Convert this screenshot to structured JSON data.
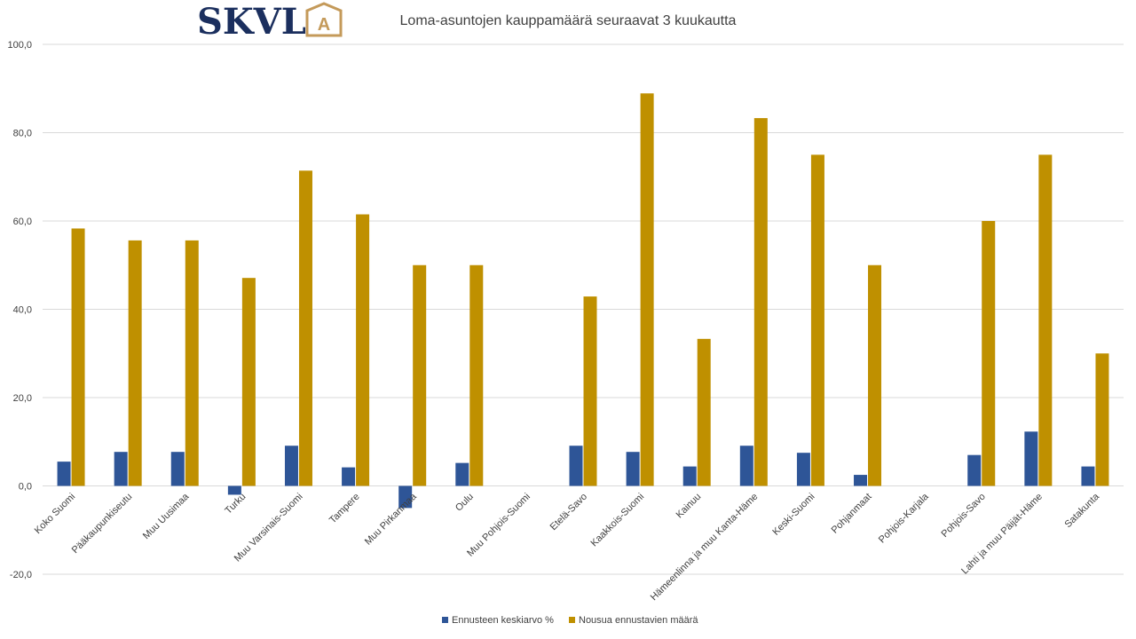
{
  "logo": {
    "text": "SKVL",
    "badge_letter": "A",
    "text_color": "#1b2f5e",
    "badge_color": "#c49a5a"
  },
  "colors": {
    "series1": "#2e5597",
    "series2": "#bf9000",
    "grid": "#d9d9d9",
    "text": "#404040"
  },
  "chart_data": {
    "type": "bar",
    "title": "Loma-asuntojen kauppamäärä seuraavat 3 kuukautta",
    "xlabel": "",
    "ylabel": "",
    "ylim": [
      -20,
      100
    ],
    "yticks": [
      "100,0",
      "80,0",
      "60,0",
      "40,0",
      "20,0",
      "0,0",
      "-20,0"
    ],
    "grid": true,
    "legend_position": "bottom",
    "categories": [
      "Koko Suomi",
      "Pääkaupunkiseutu",
      "Muu Uusimaa",
      "Turku",
      "Muu Varsinais-Suomi",
      "Tampere",
      "Muu Pirkanmaa",
      "Oulu",
      "Muu Pohjois-Suomi",
      "Etelä-Savo",
      "Kaakkois-Suomi",
      "Kainuu",
      "Hämeenlinna ja muu Kanta-Häme",
      "Keski-Suomi",
      "Pohjanmaat",
      "Pohjois-Karjala",
      "Pohjois-Savo",
      "Lahti ja muu Päijät-Häme",
      "Satakunta"
    ],
    "series": [
      {
        "name": "Ennusteen keskiarvo %",
        "values": [
          5.5,
          7.7,
          7.7,
          -2.0,
          9.1,
          4.2,
          -5.0,
          5.2,
          null,
          9.1,
          7.7,
          4.4,
          9.1,
          7.5,
          2.5,
          null,
          7.0,
          12.3,
          4.4
        ]
      },
      {
        "name": "Nousua ennustavien määrä",
        "values": [
          58.3,
          55.6,
          55.6,
          47.1,
          71.4,
          61.5,
          50.0,
          50.0,
          null,
          42.9,
          88.9,
          33.3,
          83.3,
          75.0,
          50.0,
          null,
          60.0,
          75.0,
          30.0
        ]
      }
    ]
  }
}
